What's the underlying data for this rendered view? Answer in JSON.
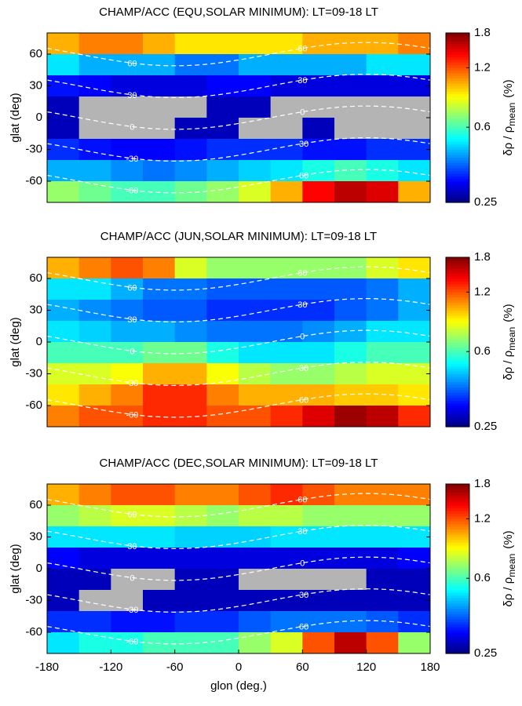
{
  "chart_data": [
    {
      "type": "heatmap",
      "title": "CHAMP/ACC (EQU,SOLAR MINIMUM): LT=09-18 LT",
      "ylabel": "glat (deg)",
      "xlim": [
        -180,
        180
      ],
      "ylim": [
        -80,
        80
      ],
      "yticks": [
        60,
        30,
        0,
        -30,
        -60
      ],
      "x": [
        -165,
        -135,
        -105,
        -75,
        -45,
        -15,
        15,
        45,
        75,
        105,
        135,
        165
      ],
      "y": [
        70,
        50,
        30,
        10,
        -10,
        -30,
        -50,
        -70
      ],
      "values": [
        [
          1.0,
          1.1,
          1.1,
          1.0,
          0.9,
          0.9,
          0.9,
          0.9,
          1.0,
          1.0,
          1.0,
          1.1
        ],
        [
          0.5,
          0.45,
          0.45,
          0.45,
          0.4,
          0.4,
          0.45,
          0.45,
          0.45,
          0.45,
          0.5,
          0.5
        ],
        [
          0.33,
          0.32,
          0.3,
          0.3,
          0.3,
          0.32,
          0.32,
          0.3,
          0.3,
          0.3,
          0.3,
          0.3
        ],
        [
          0.28,
          null,
          null,
          null,
          null,
          0.28,
          0.28,
          null,
          null,
          null,
          null,
          null
        ],
        [
          0.28,
          null,
          null,
          null,
          0.28,
          0.28,
          null,
          null,
          0.28,
          null,
          null,
          null
        ],
        [
          0.35,
          0.33,
          0.32,
          0.32,
          0.33,
          0.35,
          0.35,
          0.35,
          0.33,
          0.33,
          0.35,
          0.35
        ],
        [
          0.45,
          0.45,
          0.42,
          0.4,
          0.42,
          0.45,
          0.48,
          0.5,
          0.55,
          0.6,
          0.55,
          0.5
        ],
        [
          0.7,
          0.65,
          0.6,
          0.6,
          0.65,
          0.7,
          0.8,
          1.0,
          1.4,
          1.6,
          1.5,
          1.0
        ]
      ],
      "contour_levels": [
        60,
        30,
        0,
        -30,
        -60
      ],
      "colormap": "jet",
      "color_scale": "log",
      "clim": [
        0.25,
        1.8
      ],
      "cticks": [
        0.25,
        0.6,
        1.2,
        1.8
      ],
      "colorbar_label": {
        "main": "δρ / ρ",
        "sub": "mean",
        "unit": "(%)"
      }
    },
    {
      "type": "heatmap",
      "title": "CHAMP/ACC (JUN,SOLAR MINIMUM): LT=09-18 LT",
      "ylabel": "glat (deg)",
      "xlim": [
        -180,
        180
      ],
      "ylim": [
        -80,
        80
      ],
      "yticks": [
        60,
        30,
        0,
        -30,
        -60
      ],
      "x": [
        -165,
        -135,
        -105,
        -75,
        -45,
        -15,
        15,
        45,
        75,
        105,
        135,
        165
      ],
      "y": [
        70,
        50,
        30,
        10,
        -10,
        -30,
        -50,
        -70
      ],
      "values": [
        [
          1.0,
          1.1,
          1.2,
          1.1,
          0.8,
          0.7,
          0.7,
          0.7,
          0.7,
          0.7,
          0.8,
          0.9
        ],
        [
          0.5,
          0.5,
          0.45,
          0.4,
          0.4,
          0.38,
          0.38,
          0.38,
          0.38,
          0.38,
          0.4,
          0.45
        ],
        [
          0.45,
          0.42,
          0.4,
          0.38,
          0.38,
          0.35,
          0.35,
          0.35,
          0.35,
          0.38,
          0.4,
          0.45
        ],
        [
          0.5,
          0.48,
          0.45,
          0.45,
          0.42,
          0.4,
          0.4,
          0.4,
          0.42,
          0.45,
          0.5,
          0.5
        ],
        [
          0.6,
          0.6,
          0.6,
          0.65,
          0.65,
          0.55,
          0.5,
          0.5,
          0.5,
          0.55,
          0.6,
          0.6
        ],
        [
          0.8,
          0.8,
          0.85,
          1.0,
          1.0,
          0.85,
          0.75,
          0.7,
          0.7,
          0.75,
          0.8,
          0.8
        ],
        [
          0.9,
          1.0,
          1.1,
          1.3,
          1.3,
          1.1,
          1.0,
          1.0,
          1.0,
          0.95,
          0.95,
          0.9
        ],
        [
          1.1,
          1.2,
          1.2,
          1.3,
          1.3,
          1.2,
          1.2,
          1.3,
          1.5,
          1.7,
          1.6,
          1.3
        ]
      ],
      "contour_levels": [
        60,
        30,
        0,
        -30,
        -60
      ],
      "colormap": "jet",
      "color_scale": "log",
      "clim": [
        0.25,
        1.8
      ],
      "cticks": [
        0.25,
        0.6,
        1.2,
        1.8
      ],
      "colorbar_label": {
        "main": "δρ / ρ",
        "sub": "mean",
        "unit": "(%)"
      }
    },
    {
      "type": "heatmap",
      "title": "CHAMP/ACC (DEC,SOLAR MINIMUM): LT=09-18 LT",
      "xlabel": "glon (deg.)",
      "ylabel": "glat (deg)",
      "xlim": [
        -180,
        180
      ],
      "ylim": [
        -80,
        80
      ],
      "xticks": [
        -180,
        -120,
        -60,
        0,
        60,
        120,
        180
      ],
      "yticks": [
        60,
        30,
        0,
        -30,
        -60
      ],
      "x": [
        -165,
        -135,
        -105,
        -75,
        -45,
        -15,
        15,
        45,
        75,
        105,
        135,
        165
      ],
      "y": [
        70,
        50,
        30,
        10,
        -10,
        -30,
        -50,
        -70
      ],
      "values": [
        [
          1.0,
          1.1,
          1.2,
          1.2,
          1.1,
          1.1,
          1.2,
          1.3,
          1.2,
          1.1,
          1.1,
          1.1
        ],
        [
          0.7,
          0.75,
          0.8,
          0.8,
          0.75,
          0.7,
          0.75,
          0.75,
          0.7,
          0.7,
          0.7,
          0.7
        ],
        [
          0.5,
          0.5,
          0.5,
          0.5,
          0.48,
          0.48,
          0.48,
          0.5,
          0.5,
          0.5,
          0.5,
          0.5
        ],
        [
          0.32,
          0.3,
          0.3,
          0.3,
          0.3,
          0.3,
          0.3,
          0.3,
          0.3,
          0.3,
          0.3,
          0.32
        ],
        [
          0.28,
          0.28,
          null,
          null,
          0.28,
          0.28,
          null,
          null,
          null,
          null,
          0.28,
          0.28
        ],
        [
          0.28,
          null,
          null,
          0.28,
          0.28,
          0.28,
          0.28,
          0.28,
          0.28,
          0.28,
          0.28,
          0.28
        ],
        [
          0.35,
          0.35,
          0.33,
          0.33,
          0.35,
          0.35,
          0.38,
          0.4,
          0.4,
          0.4,
          0.38,
          0.35
        ],
        [
          0.5,
          0.55,
          0.55,
          0.6,
          0.6,
          0.6,
          0.7,
          0.8,
          1.2,
          1.6,
          1.2,
          0.7
        ]
      ],
      "contour_levels": [
        60,
        30,
        0,
        -30,
        -60
      ],
      "colormap": "jet",
      "color_scale": "log",
      "clim": [
        0.25,
        1.8
      ],
      "cticks": [
        0.25,
        0.6,
        1.2,
        1.8
      ],
      "colorbar_label": {
        "main": "δρ / ρ",
        "sub": "mean",
        "unit": "(%)"
      }
    }
  ]
}
